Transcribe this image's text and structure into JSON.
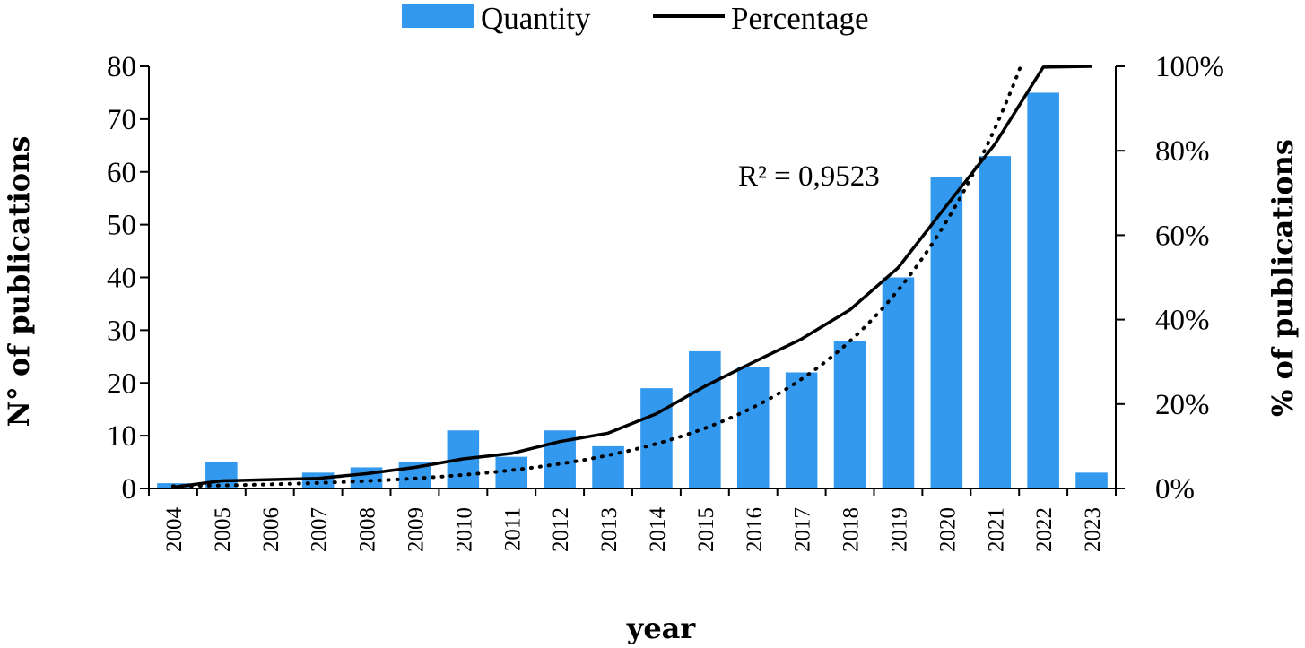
{
  "chart_data": {
    "type": "bar",
    "title": "",
    "categories": [
      "2004",
      "2005",
      "2006",
      "2007",
      "2008",
      "2009",
      "2010",
      "2011",
      "2012",
      "2013",
      "2014",
      "2015",
      "2016",
      "2017",
      "2018",
      "2019",
      "2020",
      "2021",
      "2022",
      "2023"
    ],
    "series": [
      {
        "name": "Quantity",
        "type": "bar",
        "axis": "left",
        "color": "#3399ee",
        "values": [
          1,
          5,
          0,
          3,
          4,
          5,
          11,
          6,
          11,
          8,
          19,
          26,
          23,
          22,
          28,
          40,
          59,
          63,
          75,
          3
        ]
      },
      {
        "name": "Percentage",
        "type": "line",
        "axis": "right",
        "color": "#000000",
        "values": [
          0.3,
          1.8,
          2.1,
          2.4,
          3.5,
          5,
          7,
          8.3,
          11.1,
          13.1,
          17.7,
          24.2,
          29.9,
          35.4,
          42.3,
          52.3,
          67,
          81.6,
          99.8,
          100
        ]
      }
    ],
    "trendline": {
      "type": "exponential",
      "style": "dotted",
      "color": "#000000",
      "axis": "left",
      "a": 0.3195,
      "b": 0.298,
      "label": "R² = 0,9523"
    },
    "xlabel": "year",
    "ylabel_left": "N° of publications",
    "ylabel_right": "% of publications",
    "ylim_left": [
      0,
      80
    ],
    "ylim_right": [
      0,
      100
    ],
    "yticks_left": [
      "0",
      "10",
      "20",
      "30",
      "40",
      "50",
      "60",
      "70",
      "80"
    ],
    "yticks_right": [
      "0%",
      "20%",
      "40%",
      "60%",
      "80%",
      "100%"
    ],
    "legend": [
      "Quantity",
      "Percentage"
    ],
    "legend_position": "top-center",
    "grid": false
  }
}
